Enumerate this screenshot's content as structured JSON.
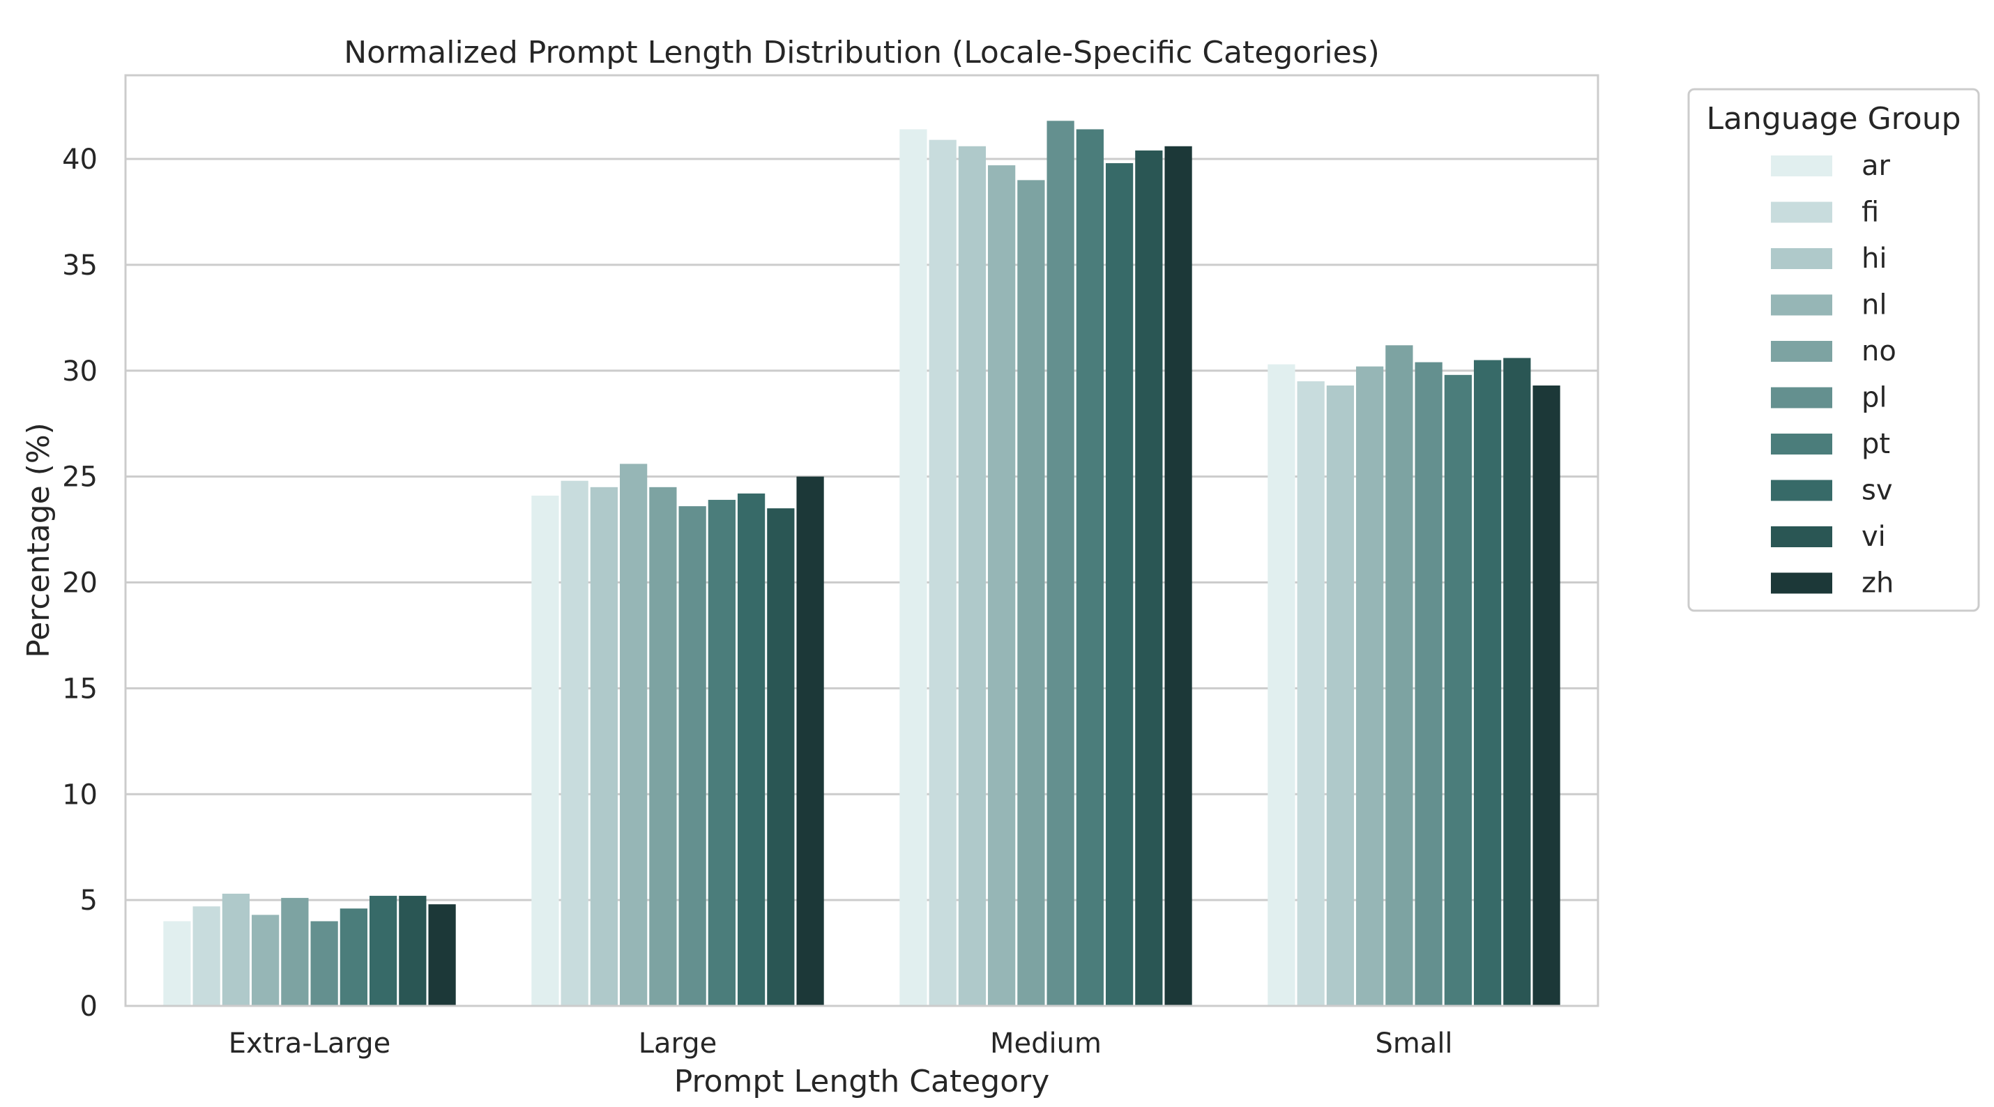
{
  "chart_data": {
    "type": "bar",
    "title": "Normalized Prompt Length Distribution (Locale-Specific Categories)",
    "xlabel": "Prompt Length Category",
    "ylabel": "Percentage (%)",
    "categories": [
      "Extra-Large",
      "Large",
      "Medium",
      "Small"
    ],
    "ylim": [
      0,
      44
    ],
    "yticks": [
      0,
      5,
      10,
      15,
      20,
      25,
      30,
      35,
      40
    ],
    "grid": "horizontal",
    "legend": {
      "title": "Language Group",
      "placement": "outside right"
    },
    "series": [
      {
        "name": "ar",
        "color": "#e1efef",
        "values": [
          4.0,
          24.1,
          41.4,
          30.3
        ]
      },
      {
        "name": "fi",
        "color": "#c8dcdd",
        "values": [
          4.7,
          24.8,
          40.9,
          29.5
        ]
      },
      {
        "name": "hi",
        "color": "#afc9ca",
        "values": [
          5.3,
          24.5,
          40.6,
          29.3
        ]
      },
      {
        "name": "nl",
        "color": "#96b6b6",
        "values": [
          4.3,
          25.6,
          39.7,
          30.2
        ]
      },
      {
        "name": "no",
        "color": "#7da3a2",
        "values": [
          5.1,
          24.5,
          39.0,
          31.2
        ]
      },
      {
        "name": "pl",
        "color": "#64908f",
        "values": [
          4.0,
          23.6,
          41.8,
          30.4
        ]
      },
      {
        "name": "pt",
        "color": "#4b7d7b",
        "values": [
          4.6,
          23.9,
          41.4,
          29.8
        ]
      },
      {
        "name": "sv",
        "color": "#376a68",
        "values": [
          5.2,
          24.2,
          39.8,
          30.5
        ]
      },
      {
        "name": "vi",
        "color": "#2a5654",
        "values": [
          5.2,
          23.5,
          40.4,
          30.6
        ]
      },
      {
        "name": "zh",
        "color": "#1c3838",
        "values": [
          4.8,
          25.0,
          40.6,
          29.3
        ]
      }
    ]
  }
}
